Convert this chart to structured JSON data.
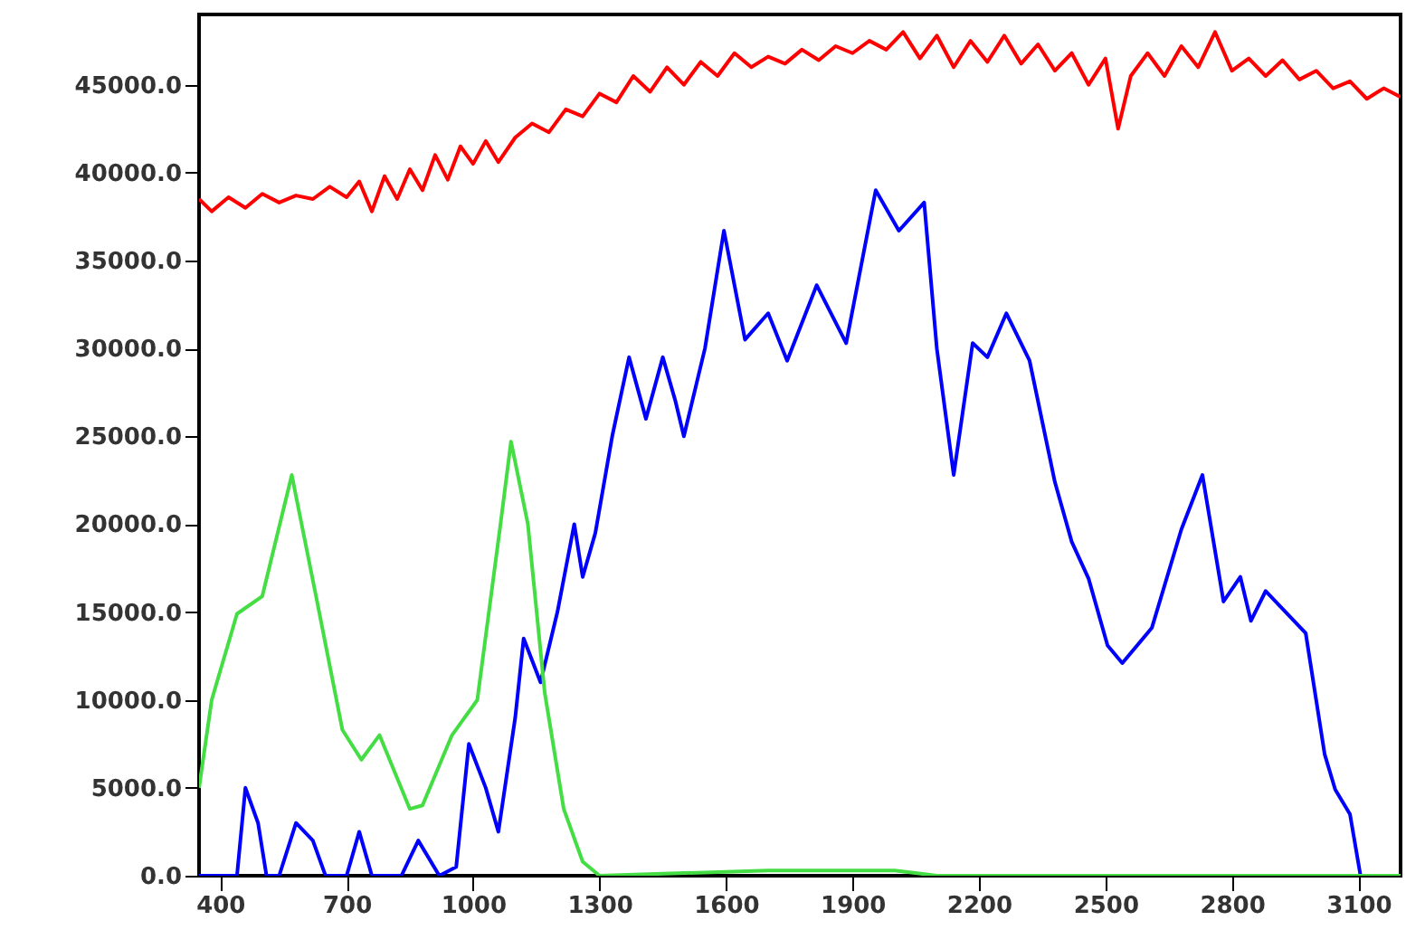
{
  "chart_data": {
    "type": "line",
    "xlim": [
      350,
      3200
    ],
    "xticks": [
      400,
      700,
      1000,
      1300,
      1600,
      1900,
      2200,
      2500,
      2800,
      3100
    ],
    "ylim": [
      0,
      49000
    ],
    "yticks": [
      {
        "value": 0,
        "label": "0.0"
      },
      {
        "value": 5000,
        "label": "5000.0"
      },
      {
        "value": 10000,
        "label": "10000.0"
      },
      {
        "value": 15000,
        "label": "15000.0"
      },
      {
        "value": 20000,
        "label": "20000.0"
      },
      {
        "value": 25000,
        "label": "25000.0"
      },
      {
        "value": 30000,
        "label": "30000.0"
      },
      {
        "value": 35000,
        "label": "35000.0"
      },
      {
        "value": 40000,
        "label": "40000.0"
      },
      {
        "value": 45000,
        "label": "45000.0"
      }
    ],
    "grid": false,
    "marker": "none",
    "line_style": "solid",
    "series": [
      {
        "color": "#ff0000",
        "x": [
          350,
          380,
          420,
          460,
          500,
          540,
          580,
          620,
          660,
          700,
          730,
          760,
          790,
          820,
          850,
          880,
          910,
          940,
          970,
          1000,
          1030,
          1060,
          1100,
          1140,
          1180,
          1220,
          1260,
          1300,
          1340,
          1380,
          1420,
          1460,
          1500,
          1540,
          1580,
          1620,
          1660,
          1700,
          1740,
          1780,
          1820,
          1860,
          1900,
          1940,
          1980,
          2020,
          2060,
          2100,
          2140,
          2180,
          2220,
          2260,
          2300,
          2340,
          2380,
          2420,
          2460,
          2500,
          2530,
          2560,
          2600,
          2640,
          2680,
          2720,
          2760,
          2800,
          2840,
          2880,
          2920,
          2960,
          3000,
          3040,
          3080,
          3120,
          3160,
          3200
        ],
        "values": [
          38500,
          37800,
          38600,
          38000,
          38800,
          38300,
          38700,
          38500,
          39200,
          38600,
          39500,
          37800,
          39800,
          38500,
          40200,
          39000,
          41000,
          39600,
          41500,
          40500,
          41800,
          40600,
          42000,
          42800,
          42300,
          43600,
          43200,
          44500,
          44000,
          45500,
          44600,
          46000,
          45000,
          46300,
          45500,
          46800,
          46000,
          46600,
          46200,
          47000,
          46400,
          47200,
          46800,
          47500,
          47000,
          48000,
          46500,
          47800,
          46000,
          47500,
          46300,
          47800,
          46200,
          47300,
          45800,
          46800,
          45000,
          46500,
          42500,
          45500,
          46800,
          45500,
          47200,
          46000,
          48000,
          45800,
          46500,
          45500,
          46400,
          45300,
          45800,
          44800,
          45200,
          44200,
          44800,
          44300
        ]
      },
      {
        "color": "#0000ff",
        "x": [
          350,
          440,
          460,
          490,
          510,
          540,
          580,
          620,
          650,
          700,
          730,
          760,
          830,
          870,
          920,
          960,
          990,
          1030,
          1060,
          1100,
          1120,
          1160,
          1200,
          1240,
          1260,
          1290,
          1330,
          1370,
          1410,
          1450,
          1480,
          1500,
          1550,
          1595,
          1645,
          1700,
          1745,
          1815,
          1885,
          1955,
          2010,
          2070,
          2100,
          2140,
          2185,
          2220,
          2265,
          2320,
          2380,
          2420,
          2460,
          2505,
          2540,
          2610,
          2680,
          2730,
          2780,
          2820,
          2845,
          2880,
          2975,
          3020,
          3045,
          3080,
          3105,
          3200
        ],
        "values": [
          0,
          0,
          5000,
          3000,
          0,
          0,
          3000,
          2000,
          0,
          0,
          2500,
          0,
          0,
          2000,
          0,
          500,
          7500,
          5000,
          2500,
          9000,
          13500,
          11000,
          15000,
          20000,
          17000,
          19500,
          25000,
          29500,
          26000,
          29500,
          27000,
          25000,
          30000,
          36700,
          30500,
          32000,
          29300,
          33600,
          30300,
          39000,
          36700,
          38300,
          30000,
          22800,
          30300,
          29500,
          32000,
          29300,
          22400,
          19000,
          16900,
          13100,
          12100,
          14100,
          19700,
          22800,
          15600,
          17000,
          14500,
          16200,
          13800,
          6900,
          4900,
          3500,
          0,
          0
        ]
      },
      {
        "color": "#44dd44",
        "x": [
          350,
          380,
          440,
          500,
          570,
          630,
          690,
          735,
          778,
          850,
          880,
          950,
          1010,
          1065,
          1090,
          1130,
          1170,
          1215,
          1260,
          1300,
          1700,
          2000,
          2100,
          3200
        ],
        "values": [
          5000,
          10000,
          14900,
          15900,
          22800,
          15600,
          8300,
          6600,
          8000,
          3800,
          4000,
          8000,
          10000,
          20000,
          24700,
          20000,
          10400,
          3800,
          800,
          0,
          300,
          300,
          0,
          0
        ]
      }
    ]
  }
}
